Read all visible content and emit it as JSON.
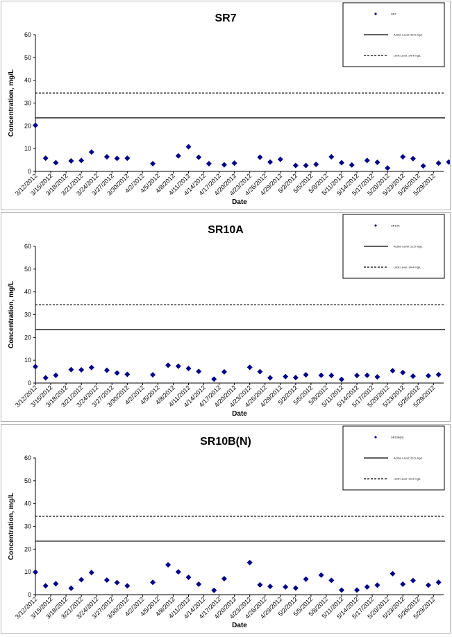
{
  "chart_data": [
    {
      "type": "scatter",
      "title": "SR7",
      "xlabel": "Date",
      "ylabel": "Concentration, mg/L",
      "ylim": [
        0,
        60
      ],
      "yticks": [
        0,
        10,
        20,
        30,
        40,
        50,
        60
      ],
      "x_tick_labels": [
        "3/12/2012",
        "3/15/2012",
        "3/18/2012",
        "3/21/2012",
        "3/24/2012",
        "3/27/2012",
        "3/30/2012",
        "4/2/2012",
        "4/5/2012",
        "4/8/2012",
        "4/11/2012",
        "4/14/2012",
        "4/17/2012",
        "4/20/2012",
        "4/23/2012",
        "4/26/2012",
        "4/29/2012",
        "5/2/2012",
        "5/5/2012",
        "5/8/2012",
        "5/11/2012",
        "5/14/2012",
        "5/17/2012",
        "5/20/2012",
        "5/23/2012",
        "5/26/2012",
        "5/29/2012"
      ],
      "xlim": [
        "3/12/2012",
        "5/31/2012"
      ],
      "series": [
        {
          "name": "SR7",
          "color": "#00008B",
          "marker": "diamond",
          "x": [
            "3/12/2012",
            "3/14/2012",
            "3/16/2012",
            "3/19/2012",
            "3/21/2012",
            "3/23/2012",
            "3/26/2012",
            "3/28/2012",
            "3/30/2012",
            "4/4/2012",
            "4/9/2012",
            "4/11/2012",
            "4/13/2012",
            "4/15/2012",
            "4/18/2012",
            "4/20/2012",
            "4/25/2012",
            "4/27/2012",
            "4/29/2012",
            "5/2/2012",
            "5/4/2012",
            "5/6/2012",
            "5/9/2012",
            "5/11/2012",
            "5/13/2012",
            "5/16/2012",
            "5/18/2012",
            "5/20/2012",
            "5/23/2012",
            "5/25/2012",
            "5/27/2012",
            "5/30/2012",
            "6/1/2012"
          ],
          "y": [
            20.2,
            5.8,
            3.8,
            4.6,
            4.8,
            8.5,
            6.4,
            5.7,
            5.8,
            3.4,
            6.8,
            10.8,
            6.2,
            3.4,
            2.9,
            3.6,
            6.2,
            4.1,
            5.3,
            2.6,
            2.6,
            3.1,
            6.4,
            3.8,
            2.8,
            4.8,
            4.0,
            1.5,
            6.4,
            5.6,
            2.4,
            3.6,
            4.1
          ]
        },
        {
          "name": "Action Level: 23.5 mg/L",
          "type": "hline",
          "value": 23.5,
          "style": "solid",
          "color": "#000000"
        },
        {
          "name": "Limit Level: 34.4 mg/L",
          "type": "hline",
          "value": 34.4,
          "style": "dashed",
          "color": "#000000"
        }
      ],
      "legend_position": "top-right",
      "grid": false
    },
    {
      "type": "scatter",
      "title": "SR10A",
      "xlabel": "Date",
      "ylabel": "Concentration, mg/L",
      "ylim": [
        0,
        60
      ],
      "yticks": [
        0,
        10,
        20,
        30,
        40,
        50,
        60
      ],
      "x_tick_labels": [
        "3/12/2012",
        "3/15/2012",
        "3/18/2012",
        "3/21/2012",
        "3/24/2012",
        "3/27/2012",
        "3/30/2012",
        "4/2/2012",
        "4/5/2012",
        "4/8/2012",
        "4/11/2012",
        "4/14/2012",
        "4/17/2012",
        "4/20/2012",
        "4/23/2012",
        "4/26/2012",
        "4/29/2012",
        "5/2/2012",
        "5/5/2012",
        "5/8/2012",
        "5/11/2012",
        "5/14/2012",
        "5/17/2012",
        "5/20/2012",
        "5/23/2012",
        "5/26/2012",
        "5/29/2012"
      ],
      "xlim": [
        "3/12/2012",
        "5/31/2012"
      ],
      "series": [
        {
          "name": "SR10A",
          "color": "#00008B",
          "marker": "diamond",
          "x": [
            "3/12/2012",
            "3/14/2012",
            "3/16/2012",
            "3/19/2012",
            "3/21/2012",
            "3/23/2012",
            "3/26/2012",
            "3/28/2012",
            "3/30/2012",
            "4/4/2012",
            "4/7/2012",
            "4/9/2012",
            "4/11/2012",
            "4/13/2012",
            "4/16/2012",
            "4/18/2012",
            "4/23/2012",
            "4/25/2012",
            "4/27/2012",
            "4/30/2012",
            "5/2/2012",
            "5/4/2012",
            "5/7/2012",
            "5/9/2012",
            "5/11/2012",
            "5/14/2012",
            "5/16/2012",
            "5/18/2012",
            "5/21/2012",
            "5/23/2012",
            "5/25/2012",
            "5/28/2012",
            "5/30/2012"
          ],
          "y": [
            7.2,
            2.3,
            3.4,
            5.9,
            5.8,
            6.8,
            5.6,
            4.4,
            3.8,
            3.6,
            7.8,
            7.4,
            6.4,
            5.1,
            1.7,
            4.9,
            6.9,
            5.0,
            2.3,
            2.8,
            2.4,
            3.6,
            3.4,
            3.3,
            1.6,
            3.3,
            3.4,
            2.7,
            5.4,
            4.6,
            3.0,
            3.2,
            3.7
          ]
        },
        {
          "name": "Action Level: 23.5 mg/L",
          "type": "hline",
          "value": 23.5,
          "style": "solid",
          "color": "#000000"
        },
        {
          "name": "Limit Level: 34.4 mg/L",
          "type": "hline",
          "value": 34.4,
          "style": "dashed",
          "color": "#000000"
        }
      ],
      "legend_position": "top-right",
      "grid": false
    },
    {
      "type": "scatter",
      "title": "SR10B(N)",
      "xlabel": "Date",
      "ylabel": "Concentration, mg/L",
      "ylim": [
        0,
        60
      ],
      "yticks": [
        0,
        10,
        20,
        30,
        40,
        50,
        60
      ],
      "x_tick_labels": [
        "3/12/2012",
        "3/15/2012",
        "3/18/2012",
        "3/21/2012",
        "3/24/2012",
        "3/27/2012",
        "3/30/2012",
        "4/2/2012",
        "4/5/2012",
        "4/8/2012",
        "4/11/2012",
        "4/14/2012",
        "4/17/2012",
        "4/20/2012",
        "4/23/2012",
        "4/26/2012",
        "4/29/2012",
        "5/2/2012",
        "5/5/2012",
        "5/8/2012",
        "5/11/2012",
        "5/14/2012",
        "5/17/2012",
        "5/20/2012",
        "5/23/2012",
        "5/26/2012",
        "5/29/2012"
      ],
      "xlim": [
        "3/12/2012",
        "5/31/2012"
      ],
      "series": [
        {
          "name": "SR10B(N)",
          "color": "#00008B",
          "marker": "diamond",
          "x": [
            "3/12/2012",
            "3/14/2012",
            "3/16/2012",
            "3/19/2012",
            "3/21/2012",
            "3/23/2012",
            "3/26/2012",
            "3/28/2012",
            "3/30/2012",
            "4/4/2012",
            "4/7/2012",
            "4/9/2012",
            "4/11/2012",
            "4/13/2012",
            "4/16/2012",
            "4/18/2012",
            "4/23/2012",
            "4/25/2012",
            "4/27/2012",
            "4/30/2012",
            "5/2/2012",
            "5/4/2012",
            "5/7/2012",
            "5/9/2012",
            "5/11/2012",
            "5/14/2012",
            "5/16/2012",
            "5/18/2012",
            "5/21/2012",
            "5/23/2012",
            "5/25/2012",
            "5/28/2012",
            "5/30/2012"
          ],
          "y": [
            9.9,
            3.9,
            4.8,
            2.8,
            6.6,
            9.7,
            6.4,
            5.3,
            3.9,
            5.4,
            13.1,
            10.0,
            7.6,
            4.6,
            1.9,
            7.0,
            14.1,
            4.3,
            3.6,
            3.4,
            2.9,
            6.8,
            8.6,
            6.3,
            2.0,
            2.0,
            3.4,
            4.2,
            9.2,
            4.6,
            6.2,
            4.2,
            5.4
          ]
        },
        {
          "name": "Action Level: 23.5 mg/L",
          "type": "hline",
          "value": 23.5,
          "style": "solid",
          "color": "#000000"
        },
        {
          "name": "Limit Level: 34.4 mg/L",
          "type": "hline",
          "value": 34.4,
          "style": "dashed",
          "color": "#000000"
        }
      ],
      "legend_position": "top-right",
      "grid": false
    }
  ]
}
